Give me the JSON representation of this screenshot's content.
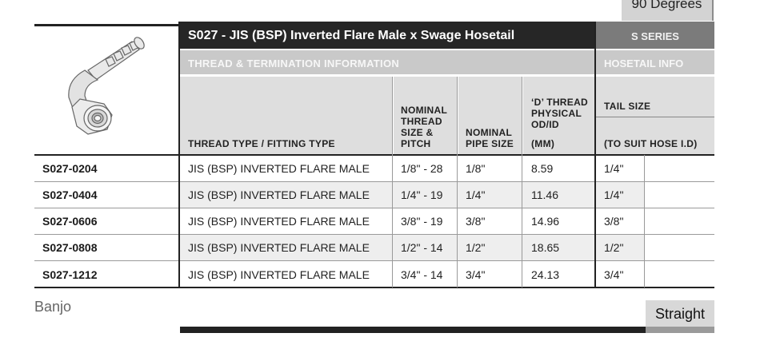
{
  "top_tab": "90 Degrees",
  "title": "S027 - JIS (BSP) Inverted Flare Male x Swage Hosetail",
  "series": "S SERIES",
  "section_thread": "THREAD & TERMINATION INFORMATION",
  "section_hosetail": "HOSETAIL INFO",
  "headers": {
    "thread_type": "THREAD TYPE / FITTING TYPE",
    "nominal_thread": [
      "NOMINAL",
      "THREAD",
      "SIZE &",
      "PITCH"
    ],
    "nominal_pipe": [
      "NOMINAL",
      "PIPE SIZE"
    ],
    "d_thread": [
      "‘D’ THREAD",
      "PHYSICAL",
      "OD/ID"
    ],
    "d_thread_unit": "(MM)",
    "tail_size": "TAIL SIZE",
    "tail_size_note": "(TO SUIT HOSE I.D)"
  },
  "rows": [
    {
      "code": "S027-0204",
      "type": "JIS (BSP) INVERTED FLARE MALE",
      "thread": "1/8\" - 28",
      "pipe": "1/8\"",
      "od": "8.59",
      "tail": "1/4\""
    },
    {
      "code": "S027-0404",
      "type": "JIS (BSP) INVERTED FLARE MALE",
      "thread": "1/4\" - 19",
      "pipe": "1/4\"",
      "od": "11.46",
      "tail": "1/4\""
    },
    {
      "code": "S027-0606",
      "type": "JIS (BSP) INVERTED FLARE MALE",
      "thread": "3/8\" - 19",
      "pipe": "3/8\"",
      "od": "14.96",
      "tail": "3/8\""
    },
    {
      "code": "S027-0808",
      "type": "JIS (BSP) INVERTED FLARE MALE",
      "thread": "1/2\" - 14",
      "pipe": "1/2\"",
      "od": "18.65",
      "tail": "1/2\""
    },
    {
      "code": "S027-1212",
      "type": "JIS (BSP) INVERTED FLARE MALE",
      "thread": "3/4\" - 14",
      "pipe": "3/4\"",
      "od": "24.13",
      "tail": "3/4\""
    }
  ],
  "nav_prev": "Banjo",
  "nav_next": "Straight",
  "icons": {
    "product": "elbow-fitting-icon"
  }
}
